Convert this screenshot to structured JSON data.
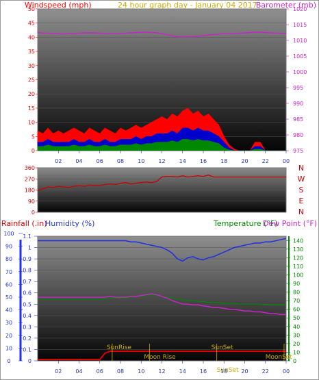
{
  "header": {
    "windspeed_label": "Windspeed (mph)",
    "date_label": "24 hour graph day - January 04 2017",
    "barometer_label": "Barometer (mb)",
    "rainfall_label": "Rainfall (.in)",
    "humidity_label": "Humidity (%)",
    "temperature_label": "Temperature (°F)",
    "dewpoint_label": "Dew Point (°F)"
  },
  "colors": {
    "windspeed": "#ff0000",
    "gust_mid": "#0000cc",
    "wind_low": "#008800",
    "barometer": "#cc22cc",
    "direction": "#cc0000",
    "humidity": "#2233dd",
    "temperature": "#cc22cc",
    "dewpoint": "#008800",
    "rainfall": "#dd0000",
    "sun": "#ccaa00",
    "date": "#ccaa00"
  },
  "chart_data": [
    {
      "type": "area",
      "x": [
        0,
        0.5,
        1,
        1.5,
        2,
        2.5,
        3,
        3.5,
        4,
        4.5,
        5,
        5.5,
        6,
        6.5,
        7,
        7.5,
        8,
        8.5,
        9,
        9.5,
        10,
        10.5,
        11,
        11.5,
        12,
        12.5,
        13,
        13.5,
        14,
        14.5,
        15,
        15.5,
        16,
        16.5,
        17,
        17.5,
        18,
        18.5,
        19,
        19.5,
        20,
        20.5,
        21,
        21.5,
        22,
        22.5,
        23,
        23.5,
        24
      ],
      "series": [
        {
          "name": "Windspeed (mph)",
          "values": [
            7,
            6,
            8,
            6,
            7,
            6,
            7,
            8,
            7,
            6,
            8,
            7,
            6,
            8,
            7,
            6,
            8,
            7,
            8,
            9,
            8,
            9,
            10,
            11,
            12,
            11,
            13,
            12,
            14,
            15,
            13,
            14,
            12,
            13,
            11,
            9,
            5,
            2,
            0.5,
            0,
            0,
            0,
            3,
            3,
            0,
            0,
            0,
            0,
            0
          ]
        },
        {
          "name": "",
          "values": [
            3,
            3,
            4,
            3,
            3,
            3,
            3,
            4,
            3,
            3,
            4,
            3,
            3,
            4,
            3,
            3,
            4,
            4,
            4,
            5,
            4,
            5,
            5,
            6,
            6,
            6,
            7,
            6,
            8,
            8,
            7,
            8,
            7,
            7,
            6,
            5,
            3,
            1,
            0,
            0,
            0,
            0,
            1.5,
            1.5,
            0,
            0,
            0,
            0,
            0
          ]
        },
        {
          "name": "",
          "values": [
            1.5,
            1.5,
            2,
            1.5,
            1.5,
            1.5,
            1.5,
            2,
            1.5,
            1.5,
            2,
            1.5,
            1.5,
            2,
            1.5,
            1.5,
            2,
            2,
            2,
            2.5,
            2,
            2.5,
            2.5,
            3,
            3,
            3,
            3.5,
            3,
            4,
            4,
            3.5,
            4,
            3.5,
            3.5,
            3,
            2.5,
            1,
            0.3,
            0,
            0,
            0,
            0,
            0.5,
            0.5,
            0,
            0,
            0,
            0,
            0
          ]
        }
      ],
      "ylim": [
        0,
        50
      ],
      "y2lim": [
        975,
        1020
      ],
      "barometer": [
        1012.5,
        1012.3,
        1012.3,
        1012.2,
        1012.1,
        1012,
        1012.1,
        1012.2,
        1012.3,
        1012.4,
        1012.4,
        1012.4,
        1012.3,
        1012.2,
        1012.1,
        1012.1,
        1012.2,
        1012.3,
        1012.4,
        1012.5,
        1012.6,
        1012.6,
        1012.5,
        1012.4,
        1012.2,
        1011.8,
        1011.4,
        1011.2,
        1011.1,
        1011.1,
        1011.2,
        1011.3,
        1011.5,
        1011.7,
        1011.9,
        1012,
        1012.1,
        1012.1,
        1012.2,
        1012.3,
        1012.4,
        1012.5,
        1012.6,
        1012.6,
        1012.5,
        1012.4,
        1012.3,
        1012.3,
        1012.2
      ],
      "xticks": [
        "02",
        "04",
        "06",
        "08",
        "10",
        "12",
        "14",
        "16",
        "18",
        "20",
        "22",
        "00"
      ],
      "yticks": [
        0,
        5,
        10,
        15,
        20,
        25,
        30,
        35,
        40,
        45,
        50
      ],
      "y2ticks": [
        975,
        980,
        985,
        990,
        995,
        1000,
        1005,
        1010,
        1015,
        1020
      ]
    },
    {
      "type": "line",
      "x": [
        0,
        0.5,
        1,
        1.5,
        2,
        2.5,
        3,
        3.5,
        4,
        4.5,
        5,
        5.5,
        6,
        6.5,
        7,
        7.5,
        8,
        8.5,
        9,
        9.5,
        10,
        10.5,
        11,
        11.5,
        12,
        12.5,
        13,
        13.5,
        14,
        14.5,
        15,
        15.5,
        16,
        16.5,
        17,
        17.5,
        18,
        18.5,
        19,
        19.5,
        20,
        20.5,
        21,
        21.5,
        22,
        22.5,
        23,
        23.5,
        24
      ],
      "series": [
        {
          "name": "",
          "values": [
            175,
            190,
            205,
            200,
            210,
            205,
            200,
            210,
            215,
            210,
            220,
            215,
            215,
            225,
            230,
            225,
            235,
            240,
            230,
            235,
            240,
            245,
            240,
            250,
            285,
            290,
            290,
            285,
            295,
            285,
            290,
            295,
            290,
            300,
            285,
            285,
            285,
            285,
            285,
            285,
            285,
            285,
            285,
            285,
            285,
            285,
            285,
            285,
            285
          ]
        }
      ],
      "ylim": [
        0,
        360
      ],
      "yticks": [
        0,
        90,
        180,
        270,
        360
      ],
      "direction_labels": [
        "N",
        "W",
        "S",
        "E",
        "N"
      ]
    },
    {
      "type": "line",
      "x": [
        0,
        0.5,
        1,
        1.5,
        2,
        2.5,
        3,
        3.5,
        4,
        4.5,
        5,
        5.5,
        6,
        6.5,
        7,
        7.5,
        8,
        8.5,
        9,
        9.5,
        10,
        10.5,
        11,
        11.5,
        12,
        12.5,
        13,
        13.5,
        14,
        14.5,
        15,
        15.5,
        16,
        16.5,
        17,
        17.5,
        18,
        18.5,
        19,
        19.5,
        20,
        20.5,
        21,
        21.5,
        22,
        22.5,
        23,
        23.5,
        24
      ],
      "humidity_scale": [
        0,
        1.1
      ],
      "temp_scale": [
        0,
        145
      ],
      "series": [
        {
          "name": "Humidity (%)",
          "values": [
            1.06,
            1.06,
            1.06,
            1.06,
            1.06,
            1.06,
            1.06,
            1.06,
            1.06,
            1.06,
            1.06,
            1.06,
            1.06,
            1.06,
            1.06,
            1.06,
            1.06,
            1.06,
            1.05,
            1.05,
            1.04,
            1.03,
            1.02,
            1.01,
            1.0,
            0.98,
            0.95,
            0.9,
            0.88,
            0.91,
            0.92,
            0.9,
            0.89,
            0.91,
            0.92,
            0.94,
            0.96,
            0.98,
            1.0,
            1.01,
            1.02,
            1.03,
            1.04,
            1.04,
            1.05,
            1.05,
            1.06,
            1.07,
            1.08
          ]
        },
        {
          "name": "Temperature (°F)",
          "values": [
            74,
            74,
            74,
            74,
            74,
            74,
            74,
            74,
            74,
            74,
            74,
            74,
            74,
            74,
            75,
            74,
            74,
            74,
            75,
            75,
            76,
            77,
            78,
            77,
            75,
            73,
            70,
            68,
            66,
            66,
            65,
            65,
            64,
            63,
            62,
            62,
            61,
            60,
            60,
            59,
            58,
            58,
            57,
            57,
            56,
            55,
            55,
            54,
            54
          ]
        },
        {
          "name": "Dew Point (°F)",
          "values": [
            72,
            72,
            72,
            72,
            72,
            72,
            72,
            72,
            72,
            72,
            72,
            72,
            72,
            72,
            73,
            73,
            73,
            73,
            74,
            75,
            75,
            76,
            77,
            76,
            75,
            74,
            73,
            72,
            71,
            70,
            70,
            69,
            69,
            68,
            68,
            68,
            67,
            67,
            67,
            66,
            66,
            66,
            66,
            66,
            65,
            65,
            65,
            65,
            65
          ]
        },
        {
          "name": "Rainfall (.in)",
          "values": [
            0,
            0,
            0,
            0,
            0,
            0,
            0,
            0,
            0,
            0,
            0,
            0,
            0,
            0.06,
            0.08,
            0.08,
            0.08,
            0.08,
            0.08,
            0.08,
            0.08,
            0.08,
            0.08,
            0.08,
            0.08,
            0.08,
            0.08,
            0.08,
            0.08,
            0.08,
            0.08,
            0.08,
            0.08,
            0.08,
            0.08,
            0.08,
            0.08,
            0.08,
            0.08,
            0.08,
            0.08,
            0.08,
            0.08,
            0.08,
            0.08,
            0.08,
            0.08,
            0.08,
            0.08
          ]
        }
      ],
      "ylim": [
        0,
        1.1
      ],
      "y2lim": [
        0,
        145
      ],
      "yticks": [
        0,
        0.1,
        0.2,
        0.3,
        0.4,
        0.5,
        0.6,
        0.7,
        0.8,
        0.9,
        1,
        1.1
      ],
      "ytick_labels": [
        "0",
        "0.1",
        "0.2",
        "0.3",
        "0.4",
        "0.5",
        "0.6",
        "0.7",
        "0.8",
        "0.9",
        "1",
        "1.1"
      ],
      "humidity_ticks": [
        0,
        10,
        20,
        30,
        40,
        50,
        60,
        70,
        80,
        90,
        100
      ],
      "y2ticks": [
        0,
        10,
        20,
        30,
        40,
        50,
        60,
        70,
        80,
        90,
        100,
        110,
        120,
        130,
        140
      ],
      "xticks": [
        "02",
        "04",
        "06",
        "08",
        "10",
        "12",
        "14",
        "16",
        "18",
        "20",
        "22",
        "00"
      ],
      "markers": [
        {
          "label": "SunRise",
          "x": 7.2,
          "row": "upper"
        },
        {
          "label": "SunSet",
          "x": 17.3,
          "row": "upper"
        },
        {
          "label": "Moon Rise",
          "x": 10.8,
          "row": "lower"
        },
        {
          "label": "SunSet",
          "x": 17.3,
          "row": "bottom"
        },
        {
          "label": "MoonSet",
          "x": 23.8,
          "row": "lower"
        }
      ]
    }
  ]
}
